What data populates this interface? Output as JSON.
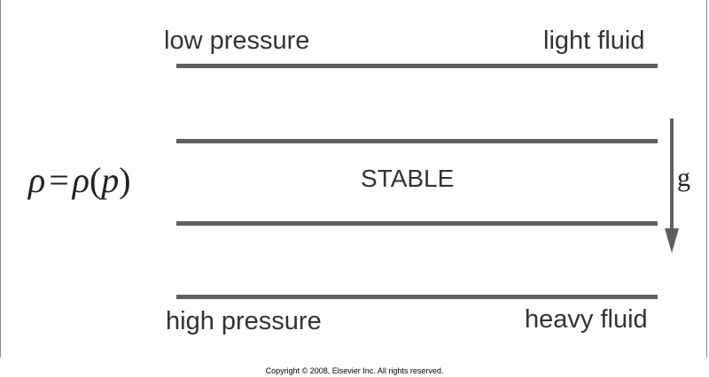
{
  "labels": {
    "top_left": "low pressure",
    "top_right": "light fluid",
    "center": "STABLE",
    "bottom_left": "high pressure",
    "bottom_right": "heavy fluid"
  },
  "formula": {
    "lhs": "ρ",
    "equals": "=",
    "func": "ρ",
    "open_paren": "(",
    "arg": "p",
    "close_paren": ")"
  },
  "gravity": {
    "label": "g",
    "icon": "down-arrow-icon"
  },
  "copyright": "Copyright © 2008, Elsevier Inc. All rights reserved.",
  "colors": {
    "line": "#5e5e5e",
    "text": "#333333"
  }
}
